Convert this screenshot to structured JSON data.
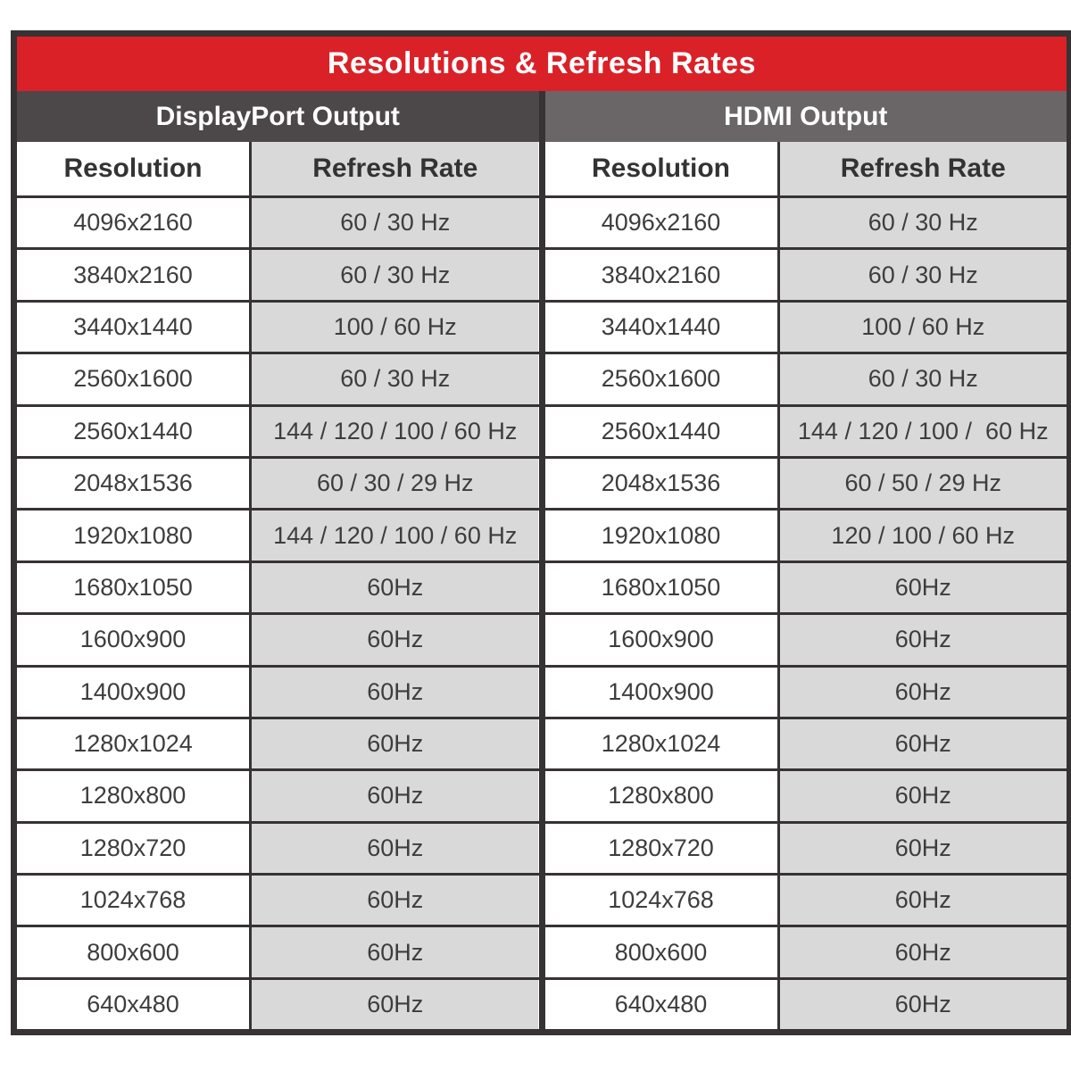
{
  "title": "Resolutions & Refresh Rates",
  "sections": [
    {
      "label": "DisplayPort Output",
      "columns": [
        "Resolution",
        "Refresh Rate"
      ]
    },
    {
      "label": "HDMI Output",
      "columns": [
        "Resolution",
        "Refresh Rate"
      ]
    }
  ],
  "chart_data": {
    "type": "table",
    "title": "Resolutions & Refresh Rates",
    "column_groups": [
      "DisplayPort Output",
      "HDMI Output"
    ],
    "columns": [
      "Resolution",
      "Refresh Rate",
      "Resolution",
      "Refresh Rate"
    ],
    "rows": [
      [
        "4096x2160",
        "60 / 30 Hz",
        "4096x2160",
        "60 / 30 Hz"
      ],
      [
        "3840x2160",
        "60 / 30 Hz",
        "3840x2160",
        "60 / 30 Hz"
      ],
      [
        "3440x1440",
        "100 / 60 Hz",
        "3440x1440",
        "100 / 60 Hz"
      ],
      [
        "2560x1600",
        "60 / 30 Hz",
        "2560x1600",
        "60 / 30 Hz"
      ],
      [
        "2560x1440",
        "144 / 120 / 100 / 60 Hz",
        "2560x1440",
        "144 / 120 / 100 /  60 Hz"
      ],
      [
        "2048x1536",
        "60 / 30 / 29 Hz",
        "2048x1536",
        "60 / 50 / 29 Hz"
      ],
      [
        "1920x1080",
        "144 / 120 / 100 / 60 Hz",
        "1920x1080",
        "120 / 100 / 60 Hz"
      ],
      [
        "1680x1050",
        "60Hz",
        "1680x1050",
        "60Hz"
      ],
      [
        "1600x900",
        "60Hz",
        "1600x900",
        "60Hz"
      ],
      [
        "1400x900",
        "60Hz",
        "1400x900",
        "60Hz"
      ],
      [
        "1280x1024",
        "60Hz",
        "1280x1024",
        "60Hz"
      ],
      [
        "1280x800",
        "60Hz",
        "1280x800",
        "60Hz"
      ],
      [
        "1280x720",
        "60Hz",
        "1280x720",
        "60Hz"
      ],
      [
        "1024x768",
        "60Hz",
        "1024x768",
        "60Hz"
      ],
      [
        "800x600",
        "60Hz",
        "800x600",
        "60Hz"
      ],
      [
        "640x480",
        "60Hz",
        "640x480",
        "60Hz"
      ]
    ]
  },
  "colors": {
    "title_bg": "#da2128",
    "displayport_header_bg": "#4c4748",
    "hdmi_header_bg": "#6a6667",
    "rate_cell_bg": "#d9d9d9",
    "resolution_cell_bg": "#ffffff",
    "border": "#373233",
    "cell_text": "#3d3d3d",
    "header_text": "#ffffff"
  }
}
